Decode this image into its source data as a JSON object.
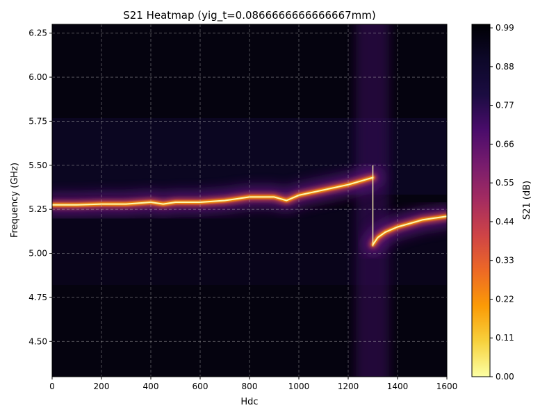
{
  "chart_data": {
    "type": "heatmap",
    "title": "S21 Heatmap (yig_t=0.0866666666666667mm)",
    "xlabel": "Hdc",
    "ylabel": "Frequency (GHz)",
    "xlim": [
      0,
      1600
    ],
    "ylim": [
      4.3,
      6.3
    ],
    "xticks": [
      0,
      200,
      400,
      600,
      800,
      1000,
      1200,
      1400,
      1600
    ],
    "yticks": [
      4.5,
      4.75,
      5.0,
      5.25,
      5.5,
      5.75,
      6.0,
      6.25
    ],
    "ytick_labels": [
      "4.50",
      "4.75",
      "5.00",
      "5.25",
      "5.50",
      "5.75",
      "6.00",
      "6.25"
    ],
    "grid": true,
    "colormap": "inferno_r",
    "colorbar": {
      "label": "S21 (dB)",
      "range": [
        0.0,
        1.0
      ],
      "ticks": [
        0.0,
        0.11,
        0.22,
        0.33,
        0.44,
        0.55,
        0.66,
        0.77,
        0.88,
        0.99
      ],
      "tick_labels": [
        "0.00",
        "0.11",
        "0.22",
        "0.33",
        "0.44",
        "0.55",
        "0.66",
        "0.77",
        "0.88",
        "0.99"
      ]
    },
    "series": [
      {
        "x": [
          0,
          100,
          200,
          300,
          400,
          450,
          500,
          600,
          700,
          750,
          800,
          900,
          950,
          1000,
          1100,
          1200,
          1250,
          1300
        ],
        "y": [
          5.275,
          5.275,
          5.28,
          5.28,
          5.29,
          5.28,
          5.29,
          5.29,
          5.3,
          5.31,
          5.32,
          5.32,
          5.3,
          5.33,
          5.36,
          5.39,
          5.41,
          5.43
        ]
      },
      {
        "x": [
          1300,
          1320,
          1350,
          1400,
          1450,
          1500,
          1550,
          1600
        ],
        "y": [
          5.05,
          5.09,
          5.12,
          5.15,
          5.17,
          5.19,
          5.2,
          5.21
        ]
      }
    ]
  }
}
